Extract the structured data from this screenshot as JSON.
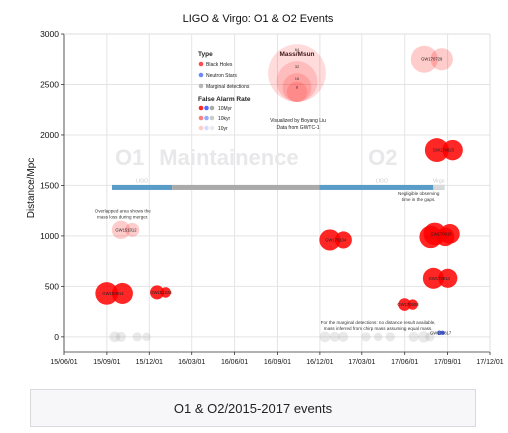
{
  "caption": "O1 & O2/2015-2017 events",
  "colors": {
    "black_hole": "#ff0000",
    "neutron_star": "#3355ff",
    "marginal": "#9a9a9a",
    "o1_run": "#5a9cc8",
    "maintenance": "#aaaaaa",
    "o2_run": "#5a9cc8"
  },
  "chart_data": {
    "type": "scatter",
    "title": "LIGO & Virgo: O1 & O2 Events",
    "xlabel": "",
    "ylabel": "Distance/Mpc",
    "xlim": [
      "2015-06-01",
      "2017-12-01"
    ],
    "ylim": [
      -150,
      3000
    ],
    "x_ticks": [
      "15/06/01",
      "15/09/01",
      "15/12/01",
      "16/03/01",
      "16/06/01",
      "16/09/01",
      "16/12/01",
      "17/03/01",
      "17/06/01",
      "17/09/01",
      "17/12/01"
    ],
    "y_ticks": [
      0,
      500,
      1000,
      1500,
      2000,
      2500,
      3000
    ],
    "grid": true,
    "period_labels": [
      {
        "text": "O1",
        "date": "2015-10-20"
      },
      {
        "text": "Maintainence",
        "date": "2016-05-20"
      },
      {
        "text": "O2",
        "date": "2017-04-15"
      }
    ],
    "observing_runs": [
      {
        "name": "O1",
        "start": "2015-09-12",
        "end": "2016-01-19",
        "label": "LIGO",
        "color": "#5a9cc8"
      },
      {
        "name": "Maintainence",
        "start": "2016-01-19",
        "end": "2016-11-30",
        "label": "",
        "color": "#aaaaaa"
      },
      {
        "name": "O2",
        "start": "2016-11-30",
        "end": "2017-08-25",
        "label": "LIGO",
        "color": "#5a9cc8"
      },
      {
        "name": "Virgo",
        "start": "2017-08-01",
        "end": "2017-08-25",
        "label": "Virgo",
        "color": "#d9d9d9"
      }
    ],
    "legend": {
      "type_title": "Type",
      "types": [
        {
          "label": "Black Holes",
          "color": "#ff0000"
        },
        {
          "label": "Neutron Stars",
          "color": "#3355ff"
        },
        {
          "label": "Marginal detections",
          "color": "#9a9a9a"
        }
      ],
      "far_title": "False Alarm Rate",
      "far_levels": [
        {
          "label": "10Myr",
          "opacity": 0.85
        },
        {
          "label": "10kyr",
          "opacity": 0.5
        },
        {
          "label": "10yr",
          "opacity": 0.2
        }
      ],
      "mass_title": "Mass/Msun",
      "mass_levels": [
        64,
        32,
        16,
        8
      ]
    },
    "credit": [
      "Visualized by Boyang Liu",
      "Data from GWTC-1"
    ],
    "annotations": [
      {
        "text": [
          "Overlapped area shows the",
          "mass loss during merger."
        ],
        "date": "2015-10-05",
        "y": 1230
      },
      {
        "text": [
          "Negligible observing",
          "time in the gaps."
        ],
        "date": "2017-07-01",
        "y": 1405
      },
      {
        "text": [
          "For the marginal detections: no distance result available,",
          "mass inferred from chirp mass assuming equal mass."
        ],
        "date": "2017-04-05",
        "y": 125
      }
    ],
    "events": [
      {
        "name": "GW150914",
        "date": "2015-09-14",
        "distance": 430,
        "masses": [
          35.6,
          30.6
        ],
        "final_mass": 63.1,
        "type": "BH",
        "far": "10Myr"
      },
      {
        "name": "GW151012",
        "date": "2015-10-12",
        "distance": 1060,
        "masses": [
          23.3,
          13.6
        ],
        "final_mass": 35.7,
        "type": "BH",
        "far": "10yr"
      },
      {
        "name": "GW151226",
        "date": "2015-12-26",
        "distance": 440,
        "masses": [
          13.7,
          7.7
        ],
        "final_mass": 20.5,
        "type": "BH",
        "far": "10Myr"
      },
      {
        "name": "GW170104",
        "date": "2017-01-04",
        "distance": 960,
        "masses": [
          31.0,
          20.1
        ],
        "final_mass": 49.1,
        "type": "BH",
        "far": "10Myr"
      },
      {
        "name": "GW170608",
        "date": "2017-06-08",
        "distance": 320,
        "masses": [
          10.9,
          7.6
        ],
        "final_mass": 17.8,
        "type": "BH",
        "far": "10Myr"
      },
      {
        "name": "GW170729",
        "date": "2017-07-29",
        "distance": 2750,
        "masses": [
          50.6,
          34.3
        ],
        "final_mass": 80.3,
        "type": "BH",
        "far": "10yr"
      },
      {
        "name": "GW170809",
        "date": "2017-08-09",
        "distance": 990,
        "masses": [
          35.2,
          23.8
        ],
        "final_mass": 56.4,
        "type": "BH",
        "far": "10Myr"
      },
      {
        "name": "GW170814",
        "date": "2017-08-14",
        "distance": 580,
        "masses": [
          30.7,
          25.3
        ],
        "final_mass": 53.4,
        "type": "BH",
        "far": "10Myr"
      },
      {
        "name": "GW170817",
        "date": "2017-08-17",
        "distance": 40,
        "masses": [
          1.46,
          1.27
        ],
        "final_mass": 2.8,
        "type": "NS",
        "far": "10Myr"
      },
      {
        "name": "GW170818",
        "date": "2017-08-18",
        "distance": 1020,
        "masses": [
          35.5,
          26.8
        ],
        "final_mass": 59.4,
        "type": "BH",
        "far": "10Myr"
      },
      {
        "name": "GW170823",
        "date": "2017-08-23",
        "distance": 1850,
        "masses": [
          39.5,
          29.0
        ],
        "final_mass": 65.4,
        "type": "BH",
        "far": "10Myr"
      }
    ],
    "marginal_detections": [
      {
        "date": "2015-09-18",
        "mass": 8
      },
      {
        "date": "2015-10-01",
        "mass": 7
      },
      {
        "date": "2015-11-05",
        "mass": 6
      },
      {
        "date": "2015-11-25",
        "mass": 5
      },
      {
        "date": "2016-12-12",
        "mass": 8
      },
      {
        "date": "2017-01-02",
        "mass": 7
      },
      {
        "date": "2017-01-20",
        "mass": 7
      },
      {
        "date": "2017-03-10",
        "mass": 6
      },
      {
        "date": "2017-04-05",
        "mass": 5
      },
      {
        "date": "2017-05-01",
        "mass": 6
      },
      {
        "date": "2017-06-20",
        "mass": 7
      },
      {
        "date": "2017-07-12",
        "mass": 9
      },
      {
        "date": "2017-07-25",
        "mass": 6
      }
    ]
  }
}
